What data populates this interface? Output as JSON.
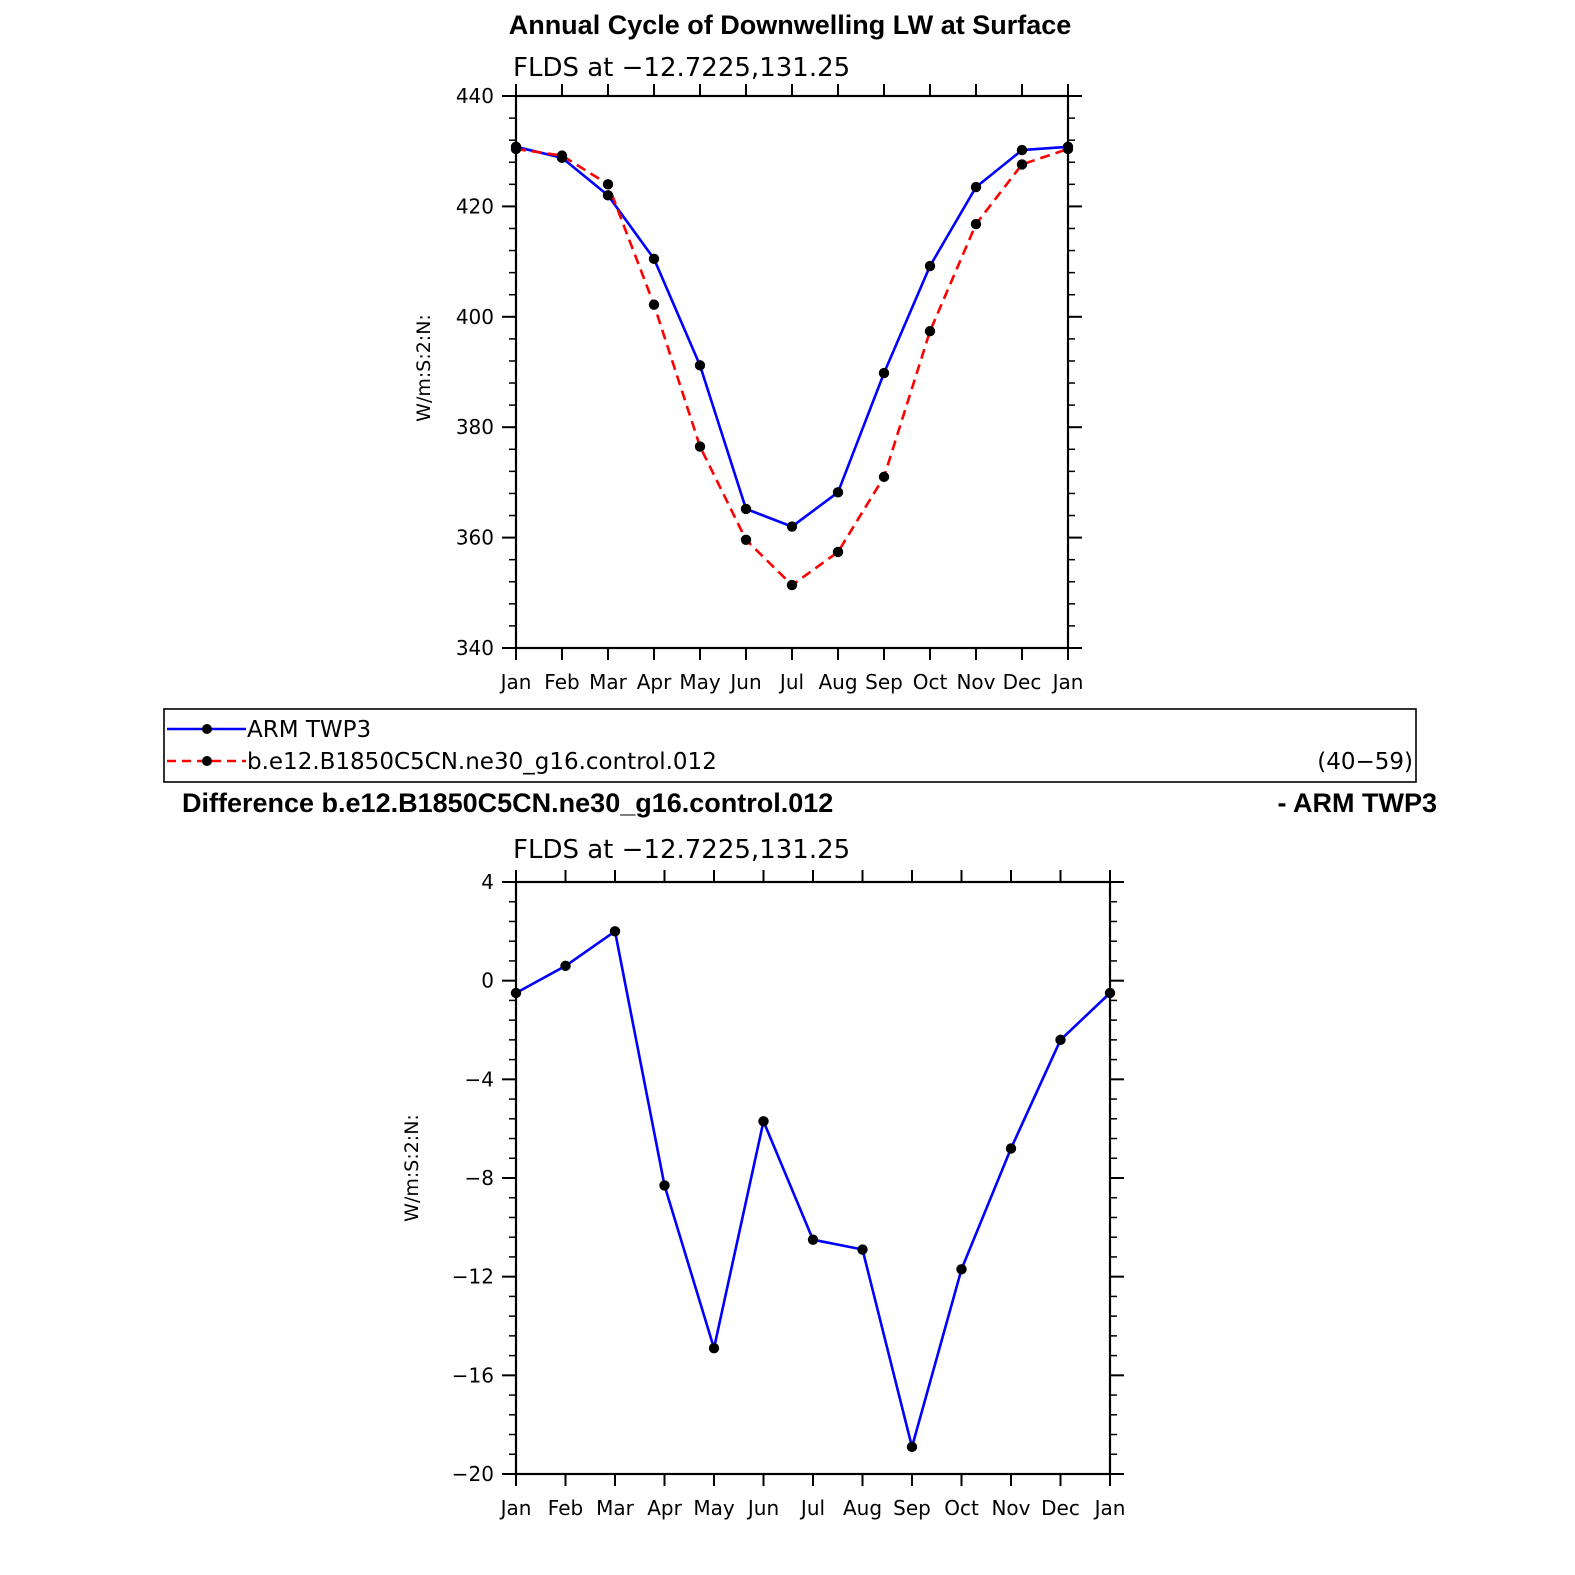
{
  "chart_data": [
    {
      "type": "line",
      "title": "Annual Cycle of Downwelling LW at Surface",
      "subtitle": "FLDS at −12.7225,131.25",
      "xlabel": "",
      "ylabel": "W/m:S:2:N:",
      "categories": [
        "Jan",
        "Feb",
        "Mar",
        "Apr",
        "May",
        "Jun",
        "Jul",
        "Aug",
        "Sep",
        "Oct",
        "Nov",
        "Dec",
        "Jan"
      ],
      "ylim": [
        340,
        440
      ],
      "yticks": [
        340,
        360,
        380,
        400,
        420,
        440
      ],
      "ytick_labels": [
        "340",
        "360",
        "380",
        "400",
        "420",
        "440"
      ],
      "series": [
        {
          "name": "ARM TWP3",
          "color": "#0000ff",
          "dash": "solid",
          "values": [
            430.8,
            428.8,
            422.0,
            410.5,
            391.2,
            365.2,
            362.0,
            368.2,
            389.8,
            409.2,
            423.5,
            430.2,
            430.8
          ]
        },
        {
          "name": "b.e12.B1850C5CN.ne30_g16.control.012",
          "color": "#ff0000",
          "dash": "dashed",
          "values": [
            430.4,
            429.2,
            424.0,
            402.2,
            376.5,
            359.6,
            351.4,
            357.4,
            371.0,
            397.4,
            416.8,
            427.6,
            430.4
          ]
        }
      ]
    },
    {
      "type": "line",
      "title_left": "Difference b.e12.B1850C5CN.ne30_g16.control.012",
      "title_right": "- ARM TWP3",
      "subtitle": "FLDS at −12.7225,131.25",
      "xlabel": "",
      "ylabel": "W/m:S:2:N:",
      "categories": [
        "Jan",
        "Feb",
        "Mar",
        "Apr",
        "May",
        "Jun",
        "Jul",
        "Aug",
        "Sep",
        "Oct",
        "Nov",
        "Dec",
        "Jan"
      ],
      "ylim": [
        -20,
        4
      ],
      "yticks": [
        -20,
        -16,
        -12,
        -8,
        -4,
        0,
        4
      ],
      "ytick_labels": [
        "−20",
        "−16",
        "−12",
        "−8",
        "−4",
        "0",
        "4"
      ],
      "series": [
        {
          "name": "difference",
          "color": "#0000ff",
          "dash": "solid",
          "values": [
            -0.5,
            0.6,
            2.0,
            -8.3,
            -14.9,
            -5.7,
            -10.5,
            -10.9,
            -18.9,
            -11.7,
            -6.8,
            -2.4,
            -0.5
          ]
        }
      ]
    }
  ],
  "legend": {
    "entries": [
      {
        "label": "ARM TWP3",
        "color": "#0000ff",
        "dash": "solid"
      },
      {
        "label": "b.e12.B1850C5CN.ne30_g16.control.012",
        "color": "#ff0000",
        "dash": "dashed"
      }
    ],
    "years": "(40−59)"
  }
}
